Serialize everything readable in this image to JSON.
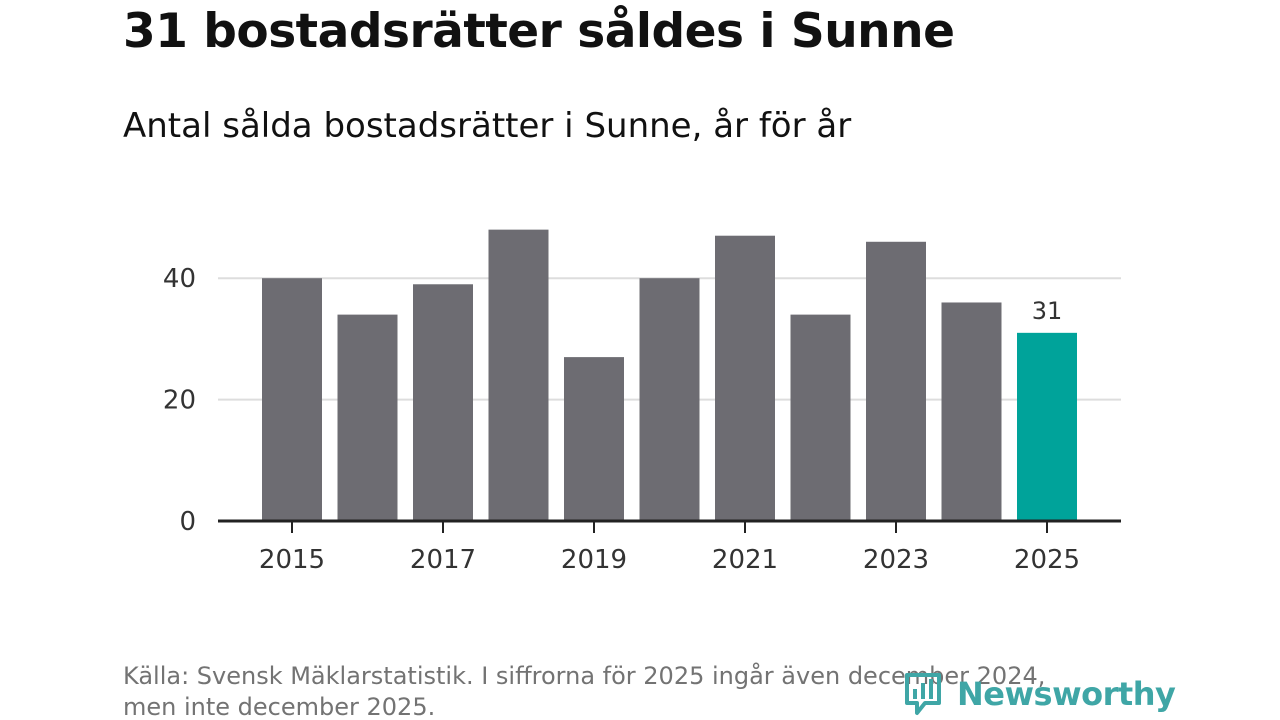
{
  "header": {
    "title": "31 bostadsrätter såldes i Sunne",
    "subtitle": "Antal sålda bostadsrätter i Sunne, år för år"
  },
  "footer": {
    "source_line1": "Källa: Svensk Mäklarstatistik. I siffrorna för 2025 ingår även december 2024,",
    "source_line2": "men inte december 2025."
  },
  "logo": {
    "text": "Newsworthy",
    "icon": "newsworthy-bar-icon"
  },
  "colors": {
    "bar": "#6d6c72",
    "highlight": "#00a39a",
    "grid": "#dddddd",
    "axis": "#222222",
    "text": "#333333",
    "logo": "#3fa6a6"
  },
  "chart_data": {
    "type": "bar",
    "title": "31 bostadsrätter såldes i Sunne",
    "subtitle": "Antal sålda bostadsrätter i Sunne, år för år",
    "xlabel": "",
    "ylabel": "",
    "categories": [
      "2015",
      "2016",
      "2017",
      "2018",
      "2019",
      "2020",
      "2021",
      "2022",
      "2023",
      "2024",
      "2025"
    ],
    "values": [
      40,
      34,
      39,
      48,
      27,
      40,
      47,
      34,
      46,
      36,
      31
    ],
    "highlight_index": 10,
    "highlight_label": "31",
    "x_tick_labels": [
      "2015",
      "2017",
      "2019",
      "2021",
      "2023",
      "2025"
    ],
    "y_ticks": [
      0,
      20,
      40
    ],
    "ylim": [
      0,
      48
    ],
    "grid": true
  }
}
